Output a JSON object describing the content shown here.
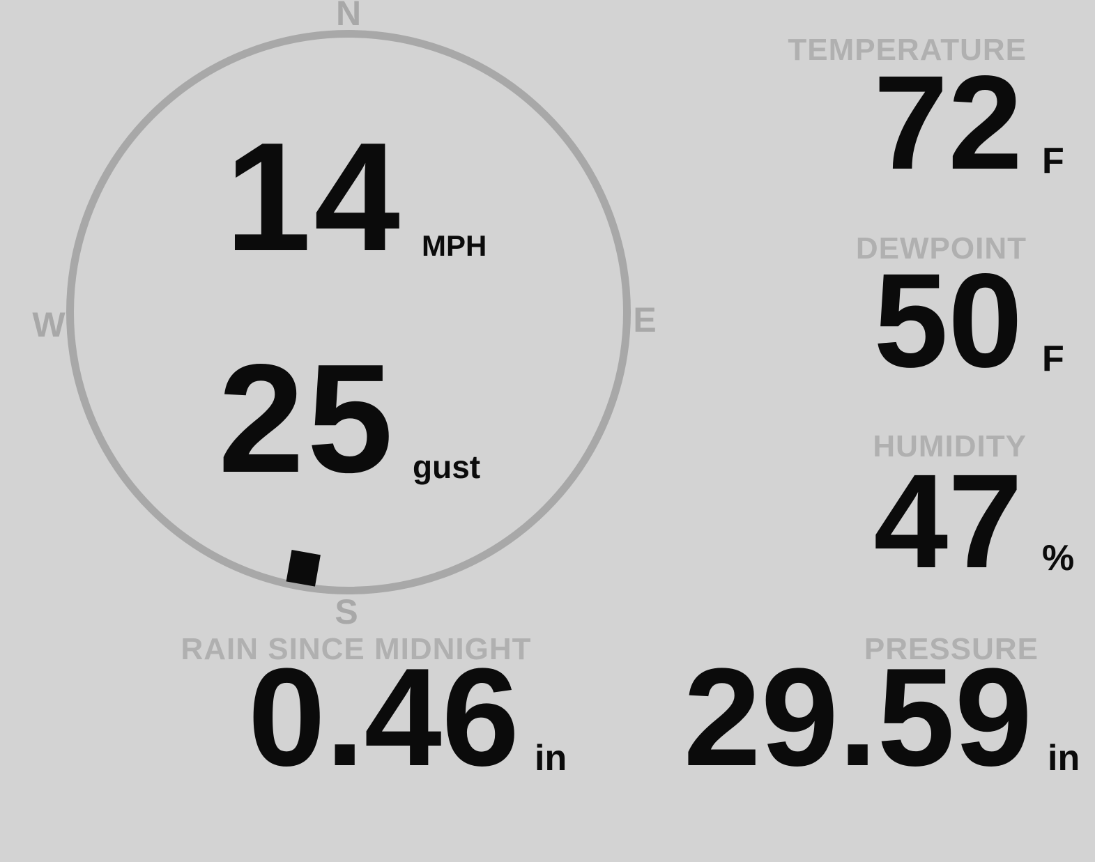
{
  "colors": {
    "background": "#d3d3d3",
    "ring": "#a8a8a8",
    "label": "#b0b0b0",
    "ink": "#0b0b0b"
  },
  "compass": {
    "north": "N",
    "east": "E",
    "south": "S",
    "west": "W"
  },
  "wind": {
    "speed": "14",
    "speed_unit": "MPH",
    "gust": "25",
    "gust_unit": "gust",
    "direction_deg": 190
  },
  "metrics": {
    "temperature": {
      "label": "TEMPERATURE",
      "value": "72",
      "unit": "F"
    },
    "dewpoint": {
      "label": "DEWPOINT",
      "value": "50",
      "unit": "F"
    },
    "humidity": {
      "label": "HUMIDITY",
      "value": "47",
      "unit": "%"
    },
    "rain_since_midnight": {
      "label": "RAIN SINCE MIDNIGHT",
      "value": "0.46",
      "unit": "in"
    },
    "pressure": {
      "label": "PRESSURE",
      "value": "29.59",
      "unit": "in"
    }
  }
}
